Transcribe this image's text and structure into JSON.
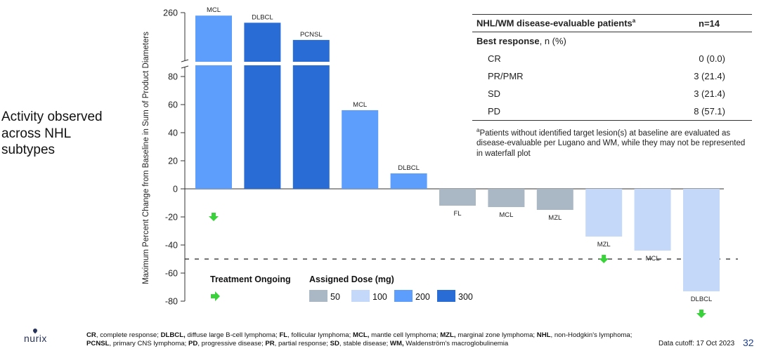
{
  "side_title": "Activity observed across NHL subtypes",
  "chart_data": {
    "type": "bar",
    "subtype": "waterfall",
    "ylabel": "Maximum Percent Change from Baseline in Sum of Product Diameters",
    "y_ticks_lower": [
      -80,
      -60,
      -40,
      -20,
      0,
      20,
      40,
      60,
      80
    ],
    "y_tick_upper": 260,
    "axis_break": true,
    "threshold_line": -50,
    "bars": [
      {
        "label": "MCL",
        "value": 255,
        "dose": 200,
        "ongoing": true
      },
      {
        "label": "DLBCL",
        "value": 243,
        "dose": 300,
        "ongoing": false
      },
      {
        "label": "PCNSL",
        "value": 214,
        "dose": 300,
        "ongoing": false
      },
      {
        "label": "MCL",
        "value": 56,
        "dose": 200,
        "ongoing": false
      },
      {
        "label": "DLBCL",
        "value": 11,
        "dose": 200,
        "ongoing": false
      },
      {
        "label": "FL",
        "value": -12,
        "dose": 50,
        "ongoing": false
      },
      {
        "label": "MCL",
        "value": -13,
        "dose": 50,
        "ongoing": false
      },
      {
        "label": "MZL",
        "value": -15,
        "dose": 50,
        "ongoing": false
      },
      {
        "label": "MZL",
        "value": -34,
        "dose": 100,
        "ongoing": true
      },
      {
        "label": "MCL",
        "value": -44,
        "dose": 100,
        "ongoing": false
      },
      {
        "label": "DLBCL",
        "value": -73,
        "dose": 100,
        "ongoing": true
      }
    ],
    "legend_treatment_title": "Treatment Ongoing",
    "legend_dose_title": "Assigned Dose (mg)",
    "doses": [
      {
        "label": "50",
        "color": "#aab7c4"
      },
      {
        "label": "100",
        "color": "#c4d8fa"
      },
      {
        "label": "200",
        "color": "#5d9dfb"
      },
      {
        "label": "300",
        "color": "#2a6cd6"
      }
    ],
    "arrow_color": "#3ad23a"
  },
  "table": {
    "header_label": "NHL/WM disease-evaluable patients",
    "header_sup": "a",
    "header_n": "n=14",
    "best_response_label": "Best response",
    "best_response_suffix": ", n (%)",
    "rows": [
      {
        "label": "CR",
        "value": "0 (0.0)"
      },
      {
        "label": "PR/PMR",
        "value": "3 (21.4)"
      },
      {
        "label": "SD",
        "value": "3 (21.4)"
      },
      {
        "label": "PD",
        "value": "8 (57.1)"
      }
    ],
    "footnote_sup": "a",
    "footnote": "Patients without identified target lesion(s) at baseline are evaluated as disease-evaluable per Lugano and WM, while they may not be represented in waterfall plot"
  },
  "footer": {
    "items": [
      {
        "abbr": "CR",
        "def": ", complete response; "
      },
      {
        "abbr": "DLBCL,",
        "def": " diffuse large B-cell lymphoma; "
      },
      {
        "abbr": "FL",
        "def": ", follicular lymphoma; "
      },
      {
        "abbr": "MCL,",
        "def": " mantle cell lymphoma; "
      },
      {
        "abbr": "MZL,",
        "def": " marginal zone lymphoma; "
      },
      {
        "abbr": "NHL",
        "def": ", non-Hodgkin's lymphoma; "
      },
      {
        "abbr": "PCNSL",
        "def": ", primary CNS lymphoma; "
      },
      {
        "abbr": "PD",
        "def": ", progressive disease; "
      },
      {
        "abbr": "PR",
        "def": ", partial response; "
      },
      {
        "abbr": "SD",
        "def": ", stable disease; "
      },
      {
        "abbr": "WM,",
        "def": " Waldenström's macroglobulinemia"
      }
    ]
  },
  "data_cutoff": "Data cutoff: 17 Oct 2023",
  "page_number": "32",
  "logo_text": "nurix"
}
